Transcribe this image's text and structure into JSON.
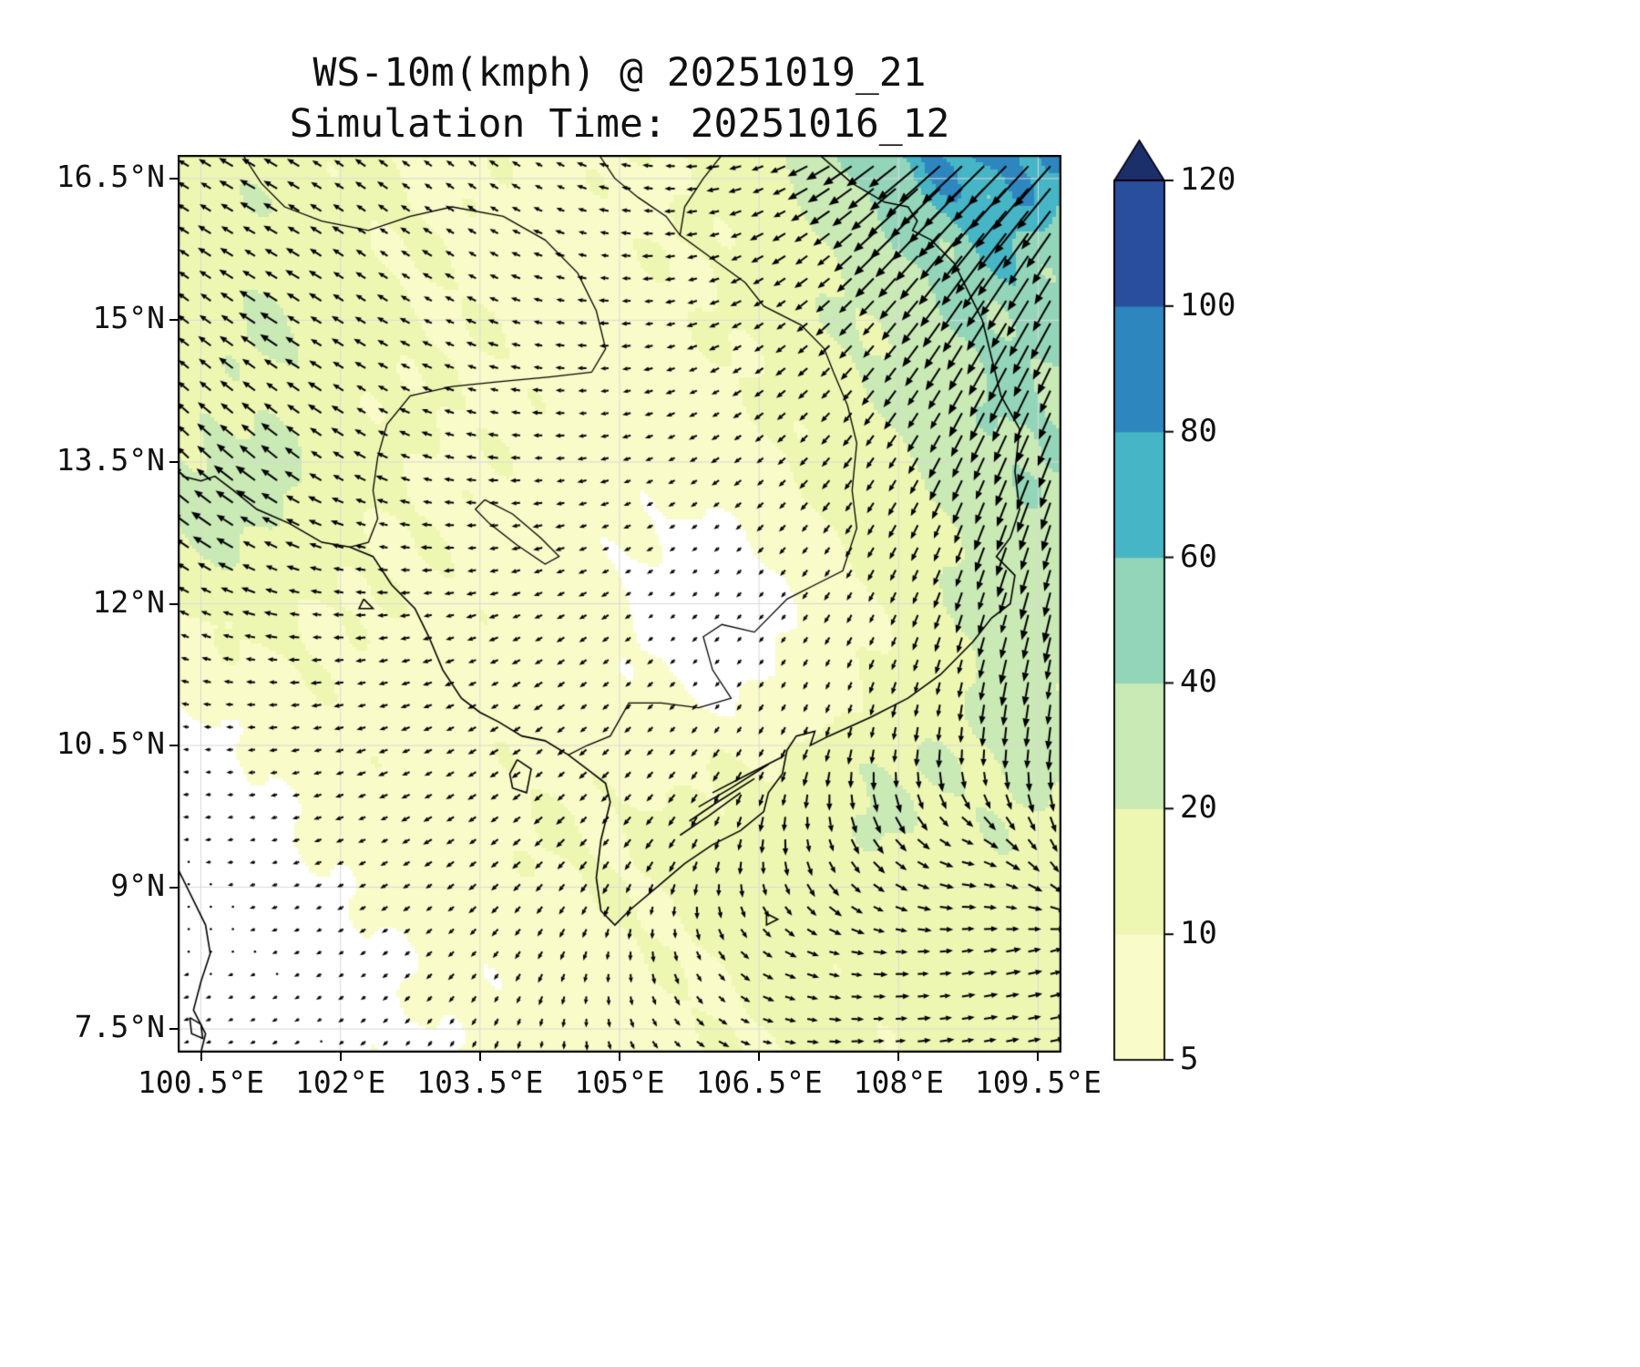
{
  "chart_data": {
    "type": "quiver+filled-contour wind map",
    "title": "WS-10m(kmph) @ 20251019_21",
    "subtitle": "Simulation Time: 20251016_12",
    "units": "kmph",
    "lon_range": [
      100.25,
      109.75
    ],
    "lat_range": [
      7.25,
      16.75
    ],
    "x_tick_lons": [
      100.5,
      102,
      103.5,
      105,
      106.5,
      108,
      109.5
    ],
    "x_tick_labels": [
      "100.5°E",
      "102°E",
      "103.5°E",
      "105°E",
      "106.5°E",
      "108°E",
      "109.5°E"
    ],
    "y_tick_lats": [
      16.5,
      15,
      13.5,
      12,
      10.5,
      9,
      7.5
    ],
    "y_tick_labels": [
      "16.5°N",
      "15°N",
      "13.5°N",
      "12°N",
      "10.5°N",
      "9°N",
      "7.5°N"
    ],
    "colorbar": {
      "levels": [
        5,
        10,
        20,
        40,
        60,
        80,
        100,
        120
      ],
      "tick_labels": [
        "5",
        "10",
        "20",
        "40",
        "60",
        "80",
        "100",
        "120"
      ],
      "band_colors": [
        "#f9fbc8",
        "#eef7b2",
        "#c9e9b5",
        "#93d5b9",
        "#46b5c5",
        "#2e86bf",
        "#2a4e9e"
      ],
      "over_color": "#1b2f6b",
      "under_color": "#ffffff"
    },
    "speed_grid": {
      "lon_start": 100.25,
      "lon_step": 0.5,
      "lat_start": 16.75,
      "lat_step": -0.5,
      "values": [
        [
          15,
          18,
          16,
          13,
          11,
          10,
          9,
          9,
          8,
          9,
          10,
          11,
          13,
          18,
          35,
          50,
          70,
          85,
          90,
          75
        ],
        [
          13,
          17,
          19,
          14,
          12,
          10,
          9,
          9,
          8,
          8,
          9,
          10,
          12,
          16,
          28,
          42,
          58,
          72,
          78,
          62
        ],
        [
          11,
          15,
          17,
          14,
          12,
          10,
          9,
          9,
          8,
          8,
          9,
          10,
          12,
          15,
          23,
          33,
          44,
          54,
          58,
          48
        ],
        [
          13,
          17,
          20,
          16,
          12,
          10,
          9,
          9,
          8,
          8,
          8,
          9,
          11,
          13,
          19,
          27,
          36,
          46,
          52,
          44
        ],
        [
          15,
          19,
          22,
          17,
          13,
          11,
          10,
          9,
          8,
          8,
          8,
          9,
          10,
          12,
          16,
          22,
          30,
          40,
          48,
          42
        ],
        [
          13,
          17,
          19,
          15,
          12,
          10,
          9,
          9,
          8,
          7,
          7,
          8,
          9,
          11,
          14,
          19,
          26,
          36,
          44,
          40
        ],
        [
          16,
          21,
          23,
          17,
          13,
          11,
          10,
          9,
          8,
          7,
          7,
          7,
          8,
          10,
          12,
          16,
          22,
          32,
          42,
          38
        ],
        [
          27,
          31,
          25,
          17,
          12,
          10,
          9,
          9,
          8,
          7,
          6,
          6,
          7,
          9,
          11,
          14,
          19,
          28,
          39,
          36
        ],
        [
          21,
          25,
          20,
          14,
          11,
          9,
          9,
          8,
          8,
          7,
          5,
          4,
          5,
          7,
          10,
          12,
          17,
          25,
          36,
          34
        ],
        [
          13,
          16,
          14,
          11,
          10,
          9,
          9,
          8,
          8,
          7,
          4,
          4,
          4,
          5,
          8,
          11,
          15,
          23,
          33,
          31
        ],
        [
          8,
          11,
          12,
          10,
          9,
          9,
          8,
          8,
          8,
          7,
          4,
          4,
          4,
          5,
          7,
          10,
          14,
          21,
          31,
          29
        ],
        [
          6,
          8,
          9,
          9,
          9,
          8,
          8,
          8,
          8,
          7,
          5,
          4,
          4,
          5,
          8,
          10,
          13,
          19,
          29,
          27
        ],
        [
          4,
          5,
          7,
          8,
          8,
          8,
          8,
          8,
          8,
          7,
          6,
          6,
          6,
          7,
          9,
          12,
          15,
          19,
          27,
          25
        ],
        [
          3,
          4,
          5,
          7,
          8,
          8,
          8,
          9,
          9,
          8,
          8,
          9,
          10,
          12,
          16,
          22,
          20,
          19,
          23,
          21
        ],
        [
          3,
          3,
          4,
          6,
          7,
          8,
          8,
          9,
          10,
          10,
          10,
          11,
          13,
          15,
          18,
          22,
          19,
          17,
          19,
          19
        ],
        [
          2,
          3,
          3,
          5,
          6,
          7,
          8,
          9,
          10,
          10,
          11,
          12,
          13,
          15,
          16,
          16,
          15,
          15,
          17,
          17
        ],
        [
          2,
          2,
          3,
          4,
          5,
          6,
          7,
          8,
          9,
          9,
          10,
          11,
          12,
          13,
          14,
          14,
          14,
          14,
          15,
          15
        ],
        [
          2,
          2,
          3,
          3,
          4,
          5,
          6,
          7,
          8,
          8,
          9,
          10,
          11,
          12,
          13,
          13,
          13,
          14,
          15,
          15
        ],
        [
          3,
          3,
          3,
          3,
          4,
          5,
          6,
          6,
          7,
          8,
          8,
          9,
          10,
          11,
          12,
          12,
          13,
          14,
          15,
          15
        ],
        [
          3,
          3,
          3,
          3,
          4,
          4,
          5,
          6,
          7,
          7,
          8,
          9,
          10,
          11,
          12,
          12,
          13,
          14,
          15,
          14
        ]
      ]
    },
    "direction_grid": {
      "lon_start": 100.25,
      "lon_step": 1.0555556,
      "lat_start": 16.75,
      "lat_step": -1.0555556,
      "angles_deg": [
        [
          150,
          150,
          145,
          142,
          155,
          175,
          200,
          215,
          222,
          228
        ],
        [
          146,
          150,
          146,
          150,
          165,
          185,
          210,
          224,
          232,
          238
        ],
        [
          141,
          146,
          150,
          160,
          175,
          195,
          215,
          229,
          239,
          244
        ],
        [
          136,
          141,
          151,
          170,
          186,
          205,
          220,
          234,
          244,
          249
        ],
        [
          145,
          155,
          170,
          186,
          200,
          214,
          226,
          239,
          249,
          254
        ],
        [
          160,
          175,
          190,
          201,
          214,
          221,
          231,
          244,
          254,
          259
        ],
        [
          175,
          190,
          200,
          210,
          220,
          226,
          241,
          261,
          268,
          264
        ],
        [
          186,
          196,
          206,
          216,
          226,
          236,
          268,
          308,
          345,
          300
        ],
        [
          194,
          204,
          214,
          226,
          246,
          281,
          330,
          354,
          8,
          15
        ],
        [
          200,
          210,
          221,
          240,
          270,
          318,
          350,
          4,
          9,
          12
        ]
      ]
    },
    "geo": {
      "coastlines": [
        [
          [
            107.15,
            16.75
          ],
          [
            107.5,
            16.45
          ],
          [
            107.85,
            16.25
          ],
          [
            108.1,
            16.2
          ],
          [
            108.2,
            16.05
          ],
          [
            108.15,
            15.95
          ],
          [
            108.35,
            15.85
          ],
          [
            108.6,
            15.6
          ],
          [
            108.75,
            15.3
          ],
          [
            108.9,
            15.0
          ],
          [
            109.0,
            14.6
          ],
          [
            109.1,
            14.2
          ],
          [
            109.3,
            13.85
          ],
          [
            109.25,
            13.4
          ],
          [
            109.3,
            13.0
          ],
          [
            109.2,
            12.7
          ],
          [
            109.05,
            12.5
          ],
          [
            109.25,
            12.3
          ],
          [
            109.2,
            12.0
          ],
          [
            109.0,
            11.85
          ],
          [
            108.8,
            11.6
          ],
          [
            108.45,
            11.25
          ],
          [
            108.1,
            11.0
          ],
          [
            107.7,
            10.8
          ],
          [
            107.25,
            10.6
          ],
          [
            107.05,
            10.5
          ],
          [
            107.1,
            10.65
          ],
          [
            106.9,
            10.6
          ],
          [
            106.8,
            10.45
          ]
        ],
        [
          [
            106.8,
            10.45
          ],
          [
            106.75,
            10.2
          ],
          [
            106.6,
            10.0
          ],
          [
            106.55,
            9.8
          ],
          [
            106.3,
            9.6
          ],
          [
            106.0,
            9.45
          ],
          [
            105.7,
            9.25
          ],
          [
            105.4,
            9.0
          ],
          [
            105.1,
            8.75
          ],
          [
            104.95,
            8.6
          ],
          [
            104.8,
            8.75
          ],
          [
            104.75,
            9.1
          ],
          [
            104.8,
            9.5
          ],
          [
            104.9,
            9.9
          ],
          [
            104.85,
            10.1
          ],
          [
            104.65,
            10.25
          ],
          [
            104.45,
            10.4
          ],
          [
            104.2,
            10.55
          ],
          [
            103.95,
            10.6
          ],
          [
            103.7,
            10.75
          ],
          [
            103.5,
            10.85
          ],
          [
            103.3,
            11.0
          ],
          [
            103.1,
            11.3
          ],
          [
            102.95,
            11.65
          ],
          [
            102.8,
            11.95
          ],
          [
            102.55,
            12.2
          ],
          [
            102.35,
            12.5
          ],
          [
            102.1,
            12.6
          ],
          [
            101.8,
            12.65
          ],
          [
            101.45,
            12.85
          ],
          [
            101.1,
            13.0
          ],
          [
            100.85,
            13.2
          ],
          [
            100.65,
            13.35
          ],
          [
            100.5,
            13.3
          ],
          [
            100.3,
            13.35
          ]
        ],
        [
          [
            100.25,
            9.2
          ],
          [
            100.4,
            8.9
          ],
          [
            100.55,
            8.6
          ],
          [
            100.6,
            8.3
          ],
          [
            100.5,
            8.0
          ],
          [
            100.42,
            7.7
          ],
          [
            100.55,
            7.45
          ],
          [
            100.5,
            7.25
          ]
        ],
        [
          [
            100.38,
            7.62
          ],
          [
            100.5,
            7.55
          ],
          [
            100.52,
            7.4
          ],
          [
            100.4,
            7.45
          ],
          [
            100.38,
            7.62
          ]
        ],
        [
          [
            103.9,
            10.35
          ],
          [
            104.05,
            10.25
          ],
          [
            104.0,
            10.0
          ],
          [
            103.85,
            10.05
          ],
          [
            103.82,
            10.2
          ],
          [
            103.9,
            10.35
          ]
        ],
        [
          [
            102.25,
            12.05
          ],
          [
            102.35,
            11.95
          ],
          [
            102.2,
            11.95
          ],
          [
            102.25,
            12.05
          ]
        ],
        [
          [
            106.58,
            8.72
          ],
          [
            106.7,
            8.66
          ],
          [
            106.58,
            8.6
          ],
          [
            106.58,
            8.72
          ]
        ],
        [
          [
            106.75,
            10.38
          ],
          [
            106.35,
            10.18
          ],
          [
            106.0,
            10.0
          ]
        ],
        [
          [
            106.6,
            10.3
          ],
          [
            106.2,
            10.05
          ],
          [
            105.85,
            9.85
          ]
        ],
        [
          [
            106.45,
            10.15
          ],
          [
            106.05,
            9.9
          ],
          [
            105.75,
            9.7
          ]
        ],
        [
          [
            106.3,
            10.0
          ],
          [
            105.95,
            9.75
          ],
          [
            105.65,
            9.55
          ]
        ]
      ],
      "borders": [
        [
          [
            104.78,
            16.75
          ],
          [
            104.95,
            16.5
          ],
          [
            105.2,
            16.3
          ],
          [
            105.5,
            16.1
          ],
          [
            105.65,
            15.9
          ],
          [
            106.0,
            15.65
          ],
          [
            106.35,
            15.4
          ],
          [
            106.55,
            15.15
          ],
          [
            106.95,
            14.95
          ],
          [
            107.2,
            14.7
          ],
          [
            107.3,
            14.45
          ],
          [
            107.45,
            14.1
          ],
          [
            107.55,
            13.7
          ],
          [
            107.5,
            13.2
          ],
          [
            107.55,
            12.8
          ],
          [
            107.4,
            12.35
          ],
          [
            107.1,
            12.2
          ],
          [
            106.8,
            12.05
          ],
          [
            106.45,
            11.7
          ],
          [
            106.1,
            11.78
          ],
          [
            105.9,
            11.65
          ],
          [
            106.0,
            11.3
          ],
          [
            106.2,
            11.0
          ],
          [
            105.85,
            10.9
          ],
          [
            105.45,
            10.95
          ],
          [
            105.1,
            10.95
          ],
          [
            104.9,
            10.6
          ],
          [
            104.65,
            10.5
          ],
          [
            104.45,
            10.4
          ]
        ],
        [
          [
            100.95,
            16.75
          ],
          [
            101.15,
            16.45
          ],
          [
            101.4,
            16.2
          ],
          [
            101.8,
            16.05
          ],
          [
            102.3,
            15.95
          ],
          [
            102.75,
            16.1
          ],
          [
            103.2,
            16.2
          ],
          [
            103.75,
            16.1
          ],
          [
            104.2,
            15.85
          ],
          [
            104.55,
            15.5
          ],
          [
            104.75,
            15.1
          ],
          [
            104.85,
            14.7
          ],
          [
            104.7,
            14.45
          ]
        ],
        [
          [
            104.7,
            14.45
          ],
          [
            104.25,
            14.4
          ],
          [
            103.7,
            14.35
          ],
          [
            103.2,
            14.3
          ],
          [
            102.75,
            14.2
          ],
          [
            102.5,
            13.9
          ],
          [
            102.4,
            13.55
          ],
          [
            102.35,
            13.2
          ],
          [
            102.4,
            12.9
          ],
          [
            102.3,
            12.65
          ],
          [
            102.1,
            12.6
          ]
        ],
        [
          [
            106.1,
            16.75
          ],
          [
            105.9,
            16.5
          ],
          [
            105.7,
            16.2
          ],
          [
            105.65,
            15.9
          ]
        ]
      ],
      "lakes": [
        [
          [
            103.55,
            13.1
          ],
          [
            103.85,
            12.95
          ],
          [
            104.15,
            12.7
          ],
          [
            104.35,
            12.5
          ],
          [
            104.2,
            12.42
          ],
          [
            103.9,
            12.62
          ],
          [
            103.6,
            12.85
          ],
          [
            103.45,
            13.0
          ],
          [
            103.55,
            13.1
          ]
        ]
      ]
    }
  }
}
